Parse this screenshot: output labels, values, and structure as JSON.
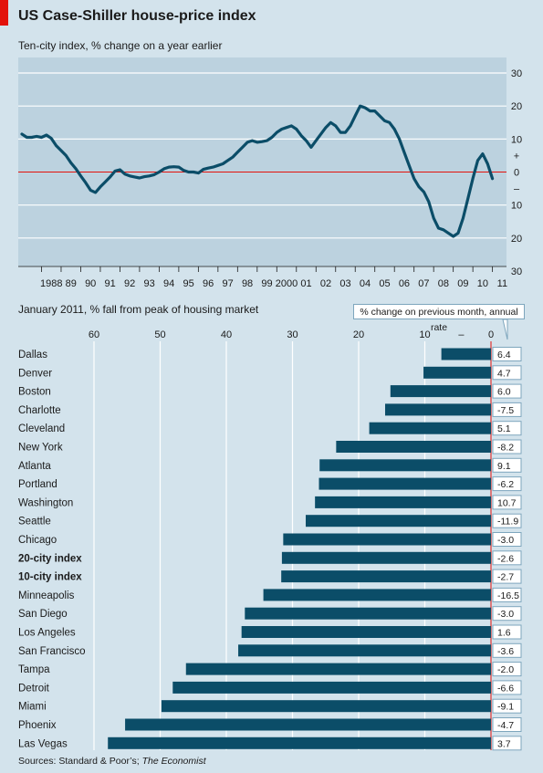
{
  "header": {
    "title": "US Case-Shiller house-price index",
    "source_prefix": "Sources: Standard & Poor’s; ",
    "source_italic": "The Economist"
  },
  "colors": {
    "background": "#d3e3ec",
    "top_panel": "#bcd2df",
    "line": "#0b4d68",
    "bar": "#0b4d68",
    "zero_line": "#e3120b",
    "accent": "#e3120b"
  },
  "chart_data": [
    {
      "type": "line",
      "title": "Ten-city index, % change on a year earlier",
      "x_tick_labels": [
        "1988",
        "89",
        "90",
        "91",
        "92",
        "93",
        "94",
        "95",
        "96",
        "97",
        "98",
        "99",
        "2000",
        "01",
        "02",
        "03",
        "04",
        "05",
        "06",
        "07",
        "08",
        "09",
        "10",
        "11"
      ],
      "y_tick_labels": [
        "30",
        "20",
        "10",
        "+",
        "0",
        "–",
        "10",
        "20",
        "30"
      ],
      "ylim": [
        -30,
        30
      ],
      "xlim": [
        1987.0,
        2011.25
      ],
      "grid": true,
      "series": [
        {
          "x": [
            1987.0,
            1987.25,
            1987.5,
            1987.75,
            1988.0,
            1988.25,
            1988.5,
            1988.75,
            1989.0,
            1989.25,
            1989.5,
            1989.75,
            1990.0,
            1990.25,
            1990.5,
            1990.75,
            1991.0,
            1991.25,
            1991.5,
            1991.75,
            1992.0,
            1992.25,
            1992.5,
            1992.75,
            1993.0,
            1993.25,
            1993.5,
            1993.75,
            1994.0,
            1994.25,
            1994.5,
            1994.75,
            1995.0,
            1995.25,
            1995.5,
            1995.75,
            1996.0,
            1996.25,
            1996.5,
            1996.75,
            1997.0,
            1997.25,
            1997.5,
            1997.75,
            1998.0,
            1998.25,
            1998.5,
            1998.75,
            1999.0,
            1999.25,
            1999.5,
            1999.75,
            2000.0,
            2000.25,
            2000.5,
            2000.75,
            2001.0,
            2001.25,
            2001.5,
            2001.75,
            2002.0,
            2002.25,
            2002.5,
            2002.75,
            2003.0,
            2003.25,
            2003.5,
            2003.75,
            2004.0,
            2004.25,
            2004.5,
            2004.75,
            2005.0,
            2005.25,
            2005.5,
            2005.75,
            2006.0,
            2006.25,
            2006.5,
            2006.75,
            2007.0,
            2007.25,
            2007.5,
            2007.75,
            2008.0,
            2008.25,
            2008.5,
            2008.75,
            2009.0,
            2009.25,
            2009.5,
            2009.75,
            2010.0,
            2010.25,
            2010.5,
            2010.75,
            2011.0
          ],
          "y": [
            11.5,
            10.5,
            10.5,
            10.8,
            10.5,
            11.2,
            10.2,
            8.0,
            6.5,
            5.0,
            2.8,
            1.0,
            -1.2,
            -3.2,
            -5.5,
            -6.2,
            -4.5,
            -3.0,
            -1.5,
            0.3,
            0.7,
            -0.6,
            -1.2,
            -1.5,
            -1.8,
            -1.4,
            -1.2,
            -0.8,
            0.0,
            1.0,
            1.5,
            1.6,
            1.5,
            0.5,
            0.0,
            0.0,
            -0.3,
            0.8,
            1.2,
            1.5,
            2.0,
            2.5,
            3.5,
            4.5,
            6.0,
            7.5,
            9.0,
            9.5,
            9.0,
            9.2,
            9.5,
            10.5,
            12.0,
            13.0,
            13.5,
            14.0,
            13.0,
            11.0,
            9.5,
            7.5,
            9.5,
            11.5,
            13.5,
            15.0,
            14.0,
            12.0,
            12.0,
            14.0,
            17.0,
            20.0,
            19.5,
            18.5,
            18.5,
            17.0,
            15.5,
            15.0,
            13.0,
            10.0,
            6.0,
            2.0,
            -2.0,
            -4.5,
            -6.0,
            -9.0,
            -14.0,
            -17.0,
            -17.5,
            -18.5,
            -19.5,
            -18.5,
            -14.0,
            -8.0,
            -2.0,
            3.5,
            5.5,
            2.5,
            -2.0
          ]
        }
      ]
    },
    {
      "type": "bar",
      "title": "January 2011, % fall from peak of housing market",
      "secondary_column_title": "% change on previous month, annual rate",
      "x_tick_labels": [
        "60",
        "50",
        "40",
        "30",
        "20",
        "10",
        "–",
        "0"
      ],
      "xlim": [
        60,
        0
      ],
      "grid": true,
      "categories": [
        "Dallas",
        "Denver",
        "Boston",
        "Charlotte",
        "Cleveland",
        "New York",
        "Atlanta",
        "Portland",
        "Washington",
        "Seattle",
        "Chicago",
        "20-city index",
        "10-city index",
        "Minneapolis",
        "San Diego",
        "Los Angeles",
        "San Francisco",
        "Tampa",
        "Detroit",
        "Miami",
        "Phoenix",
        "Las Vegas"
      ],
      "bold_categories": [
        "20-city index",
        "10-city index"
      ],
      "values": [
        7.5,
        10.2,
        15.2,
        16.0,
        18.4,
        23.4,
        25.9,
        26.0,
        26.6,
        28.0,
        31.4,
        31.6,
        31.7,
        34.4,
        37.2,
        37.7,
        38.2,
        46.1,
        48.1,
        49.8,
        55.3,
        57.9
      ],
      "monthly_change_labels": [
        "6.4",
        "4.7",
        "6.0",
        "-7.5",
        "5.1",
        "-8.2",
        "9.1",
        "-6.2",
        "10.7",
        "-11.9",
        "-3.0",
        "-2.6",
        "-2.7",
        "-16.5",
        "-3.0",
        "1.6",
        "-3.6",
        "-2.0",
        "-6.6",
        "-9.1",
        "-4.7",
        "3.7"
      ]
    }
  ]
}
